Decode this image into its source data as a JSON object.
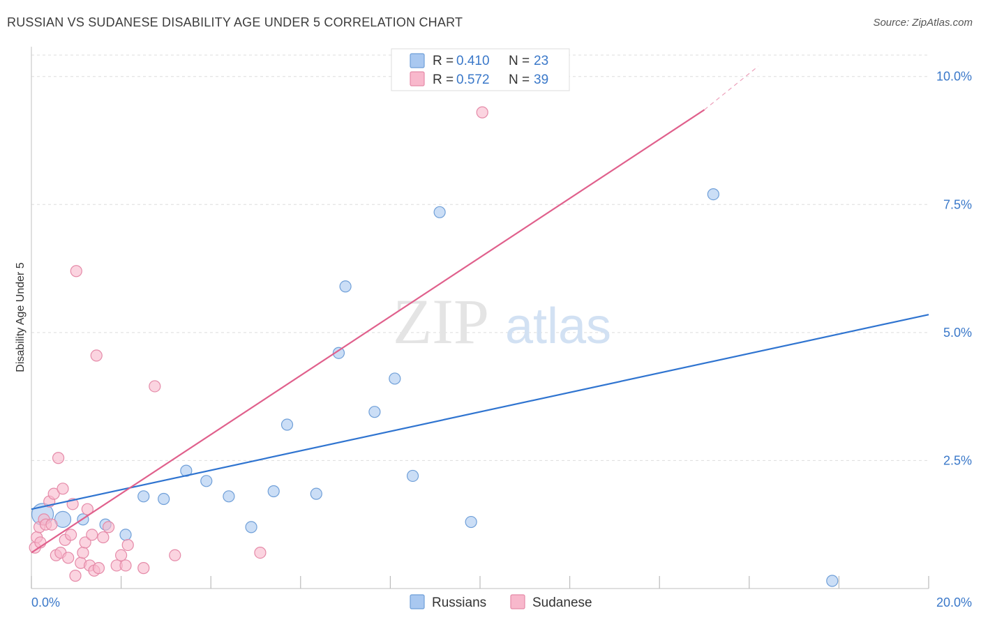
{
  "header": {
    "title": "RUSSIAN VS SUDANESE DISABILITY AGE UNDER 5 CORRELATION CHART",
    "source": "Source: ZipAtlas.com"
  },
  "watermark": {
    "zip": "ZIP",
    "atlas": "atlas"
  },
  "legend_top": [
    {
      "r_label": "R = ",
      "r_value": "0.410",
      "n_label": "N = ",
      "n_value": "23"
    },
    {
      "r_label": "R = ",
      "r_value": "0.572",
      "n_label": "N = ",
      "n_value": "39"
    }
  ],
  "colors": {
    "russians_fill": "#a9c8f0",
    "russians_stroke": "#6f9fd8",
    "russians_line": "#2f74d0",
    "sudanese_fill": "#f8b8cc",
    "sudanese_stroke": "#e58aa8",
    "sudanese_line": "#e0608c",
    "accent_text": "#3a78c9",
    "grid": "#dddddd"
  },
  "chart_data": {
    "type": "scatter",
    "title": "RUSSIAN VS SUDANESE DISABILITY AGE UNDER 5 CORRELATION CHART",
    "xlabel": "",
    "ylabel": "Disability Age Under 5",
    "xlim": [
      0,
      20
    ],
    "ylim": [
      0,
      10.5
    ],
    "x_tick_labels": [
      "0.0%",
      "20.0%"
    ],
    "y_ticks": [
      2.5,
      5.0,
      7.5,
      10.0
    ],
    "y_tick_labels": [
      "2.5%",
      "5.0%",
      "7.5%",
      "10.0%"
    ],
    "legend": [
      "Russians",
      "Sudanese"
    ],
    "series": [
      {
        "name": "Russians",
        "r": 0.41,
        "n": 23,
        "trend": {
          "x0": 0,
          "y0": 1.55,
          "x1": 20,
          "y1": 5.35
        },
        "points": [
          {
            "x": 0.25,
            "y": 1.45,
            "s": 3
          },
          {
            "x": 0.7,
            "y": 1.35,
            "s": 2
          },
          {
            "x": 1.15,
            "y": 1.35,
            "s": 1
          },
          {
            "x": 1.65,
            "y": 1.25,
            "s": 1
          },
          {
            "x": 2.1,
            "y": 1.05,
            "s": 1
          },
          {
            "x": 2.5,
            "y": 1.8,
            "s": 1
          },
          {
            "x": 2.95,
            "y": 1.75,
            "s": 1
          },
          {
            "x": 3.45,
            "y": 2.3,
            "s": 1
          },
          {
            "x": 3.9,
            "y": 2.1,
            "s": 1
          },
          {
            "x": 4.4,
            "y": 1.8,
            "s": 1
          },
          {
            "x": 4.9,
            "y": 1.2,
            "s": 1
          },
          {
            "x": 5.4,
            "y": 1.9,
            "s": 1
          },
          {
            "x": 5.7,
            "y": 3.2,
            "s": 1
          },
          {
            "x": 6.35,
            "y": 1.85,
            "s": 1
          },
          {
            "x": 6.85,
            "y": 4.6,
            "s": 1
          },
          {
            "x": 7.0,
            "y": 5.9,
            "s": 1
          },
          {
            "x": 7.65,
            "y": 3.45,
            "s": 1
          },
          {
            "x": 8.1,
            "y": 4.1,
            "s": 1
          },
          {
            "x": 8.5,
            "y": 2.2,
            "s": 1
          },
          {
            "x": 9.1,
            "y": 7.35,
            "s": 1
          },
          {
            "x": 9.8,
            "y": 1.3,
            "s": 1
          },
          {
            "x": 15.2,
            "y": 7.7,
            "s": 1
          },
          {
            "x": 17.85,
            "y": 0.15,
            "s": 1
          }
        ]
      },
      {
        "name": "Sudanese",
        "r": 0.572,
        "n": 39,
        "trend": {
          "x0": 0,
          "y0": 0.7,
          "x1": 15.0,
          "y1": 9.35,
          "x1_dashed": 16.2,
          "y1_dashed": 10.2
        },
        "points": [
          {
            "x": 0.08,
            "y": 0.8,
            "s": 1
          },
          {
            "x": 0.12,
            "y": 1.0,
            "s": 1
          },
          {
            "x": 0.18,
            "y": 1.2,
            "s": 1
          },
          {
            "x": 0.2,
            "y": 0.9,
            "s": 1
          },
          {
            "x": 0.28,
            "y": 1.35,
            "s": 1
          },
          {
            "x": 0.32,
            "y": 1.25,
            "s": 1
          },
          {
            "x": 0.4,
            "y": 1.7,
            "s": 1
          },
          {
            "x": 0.45,
            "y": 1.25,
            "s": 1
          },
          {
            "x": 0.5,
            "y": 1.85,
            "s": 1
          },
          {
            "x": 0.55,
            "y": 0.65,
            "s": 1
          },
          {
            "x": 0.6,
            "y": 2.55,
            "s": 1
          },
          {
            "x": 0.65,
            "y": 0.7,
            "s": 1
          },
          {
            "x": 0.7,
            "y": 1.95,
            "s": 1
          },
          {
            "x": 0.75,
            "y": 0.95,
            "s": 1
          },
          {
            "x": 0.82,
            "y": 0.6,
            "s": 1
          },
          {
            "x": 0.88,
            "y": 1.05,
            "s": 1
          },
          {
            "x": 0.92,
            "y": 1.65,
            "s": 1
          },
          {
            "x": 0.98,
            "y": 0.25,
            "s": 1
          },
          {
            "x": 1.0,
            "y": 6.2,
            "s": 1
          },
          {
            "x": 1.1,
            "y": 0.5,
            "s": 1
          },
          {
            "x": 1.15,
            "y": 0.7,
            "s": 1
          },
          {
            "x": 1.2,
            "y": 0.9,
            "s": 1
          },
          {
            "x": 1.25,
            "y": 1.55,
            "s": 1
          },
          {
            "x": 1.3,
            "y": 0.45,
            "s": 1
          },
          {
            "x": 1.35,
            "y": 1.05,
            "s": 1
          },
          {
            "x": 1.4,
            "y": 0.35,
            "s": 1
          },
          {
            "x": 1.45,
            "y": 4.55,
            "s": 1
          },
          {
            "x": 1.5,
            "y": 0.4,
            "s": 1
          },
          {
            "x": 1.6,
            "y": 1.0,
            "s": 1
          },
          {
            "x": 1.72,
            "y": 1.2,
            "s": 1
          },
          {
            "x": 1.9,
            "y": 0.45,
            "s": 1
          },
          {
            "x": 2.0,
            "y": 0.65,
            "s": 1
          },
          {
            "x": 2.1,
            "y": 0.45,
            "s": 1
          },
          {
            "x": 2.15,
            "y": 0.85,
            "s": 1
          },
          {
            "x": 2.5,
            "y": 0.4,
            "s": 1
          },
          {
            "x": 2.75,
            "y": 3.95,
            "s": 1
          },
          {
            "x": 3.2,
            "y": 0.65,
            "s": 1
          },
          {
            "x": 5.1,
            "y": 0.7,
            "s": 1
          },
          {
            "x": 10.05,
            "y": 9.3,
            "s": 1
          }
        ]
      }
    ]
  }
}
